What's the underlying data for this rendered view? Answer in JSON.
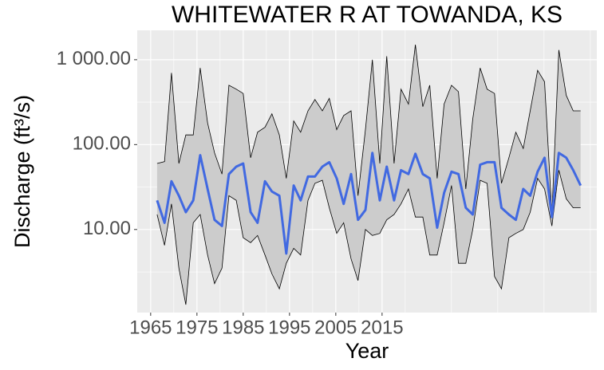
{
  "chart_data": {
    "type": "ribbon-line",
    "title": "WHITEWATER R AT TOWANDA, KS",
    "x_label": "Year",
    "y_label": "Discharge (ft³/s)",
    "log_y": true,
    "grid": true,
    "x": [
      1966.4,
      1968.0,
      1969.5,
      1971.1,
      1972.6,
      1974.2,
      1975.7,
      1977.3,
      1978.8,
      1980.4,
      1981.9,
      1983.5,
      1985.0,
      1986.6,
      1988.1,
      1989.7,
      1991.2,
      1992.8,
      1994.3,
      1995.9,
      1997.4,
      1999.0,
      2000.5,
      2002.1,
      2003.6,
      2005.2,
      2006.7,
      2008.3,
      2009.8,
      2011.4,
      2012.9,
      2014.5,
      2016.0,
      2017.6,
      2019.1,
      2020.7,
      2022.2,
      2023.8,
      2025.3,
      2026.9,
      2028.4,
      2030.0,
      2031.5,
      2033.1,
      2034.6,
      2036.2,
      2037.7,
      2039.3,
      2040.8,
      2042.4,
      2043.9,
      2045.5,
      2047.0,
      2048.6,
      2050.1,
      2051.7,
      2053.2,
      2054.8,
      2056.3,
      2057.9
    ],
    "upper": [
      60,
      63,
      700,
      60,
      130,
      130,
      800,
      180,
      80,
      45,
      500,
      450,
      400,
      70,
      140,
      160,
      230,
      130,
      40,
      190,
      140,
      250,
      340,
      250,
      350,
      150,
      220,
      250,
      25,
      150,
      1000,
      60,
      1100,
      60,
      450,
      300,
      1500,
      280,
      500,
      40,
      300,
      500,
      420,
      30,
      200,
      800,
      450,
      400,
      35,
      70,
      140,
      90,
      250,
      750,
      550,
      15,
      1300,
      380,
      250,
      250
    ],
    "median": [
      22,
      12,
      37,
      25,
      16,
      22,
      75,
      30,
      13,
      11,
      45,
      55,
      60,
      16,
      12,
      37,
      28,
      25,
      5.2,
      33,
      22,
      42,
      42,
      55,
      62,
      40,
      20,
      45,
      13,
      17,
      80,
      22,
      55,
      22,
      50,
      45,
      78,
      45,
      40,
      10.5,
      27,
      48,
      45,
      18,
      15,
      58,
      62,
      62,
      18,
      15,
      13,
      30,
      25,
      48,
      70,
      14,
      80,
      70,
      50,
      33
    ],
    "lower": [
      15,
      6.5,
      20,
      3.5,
      1.3,
      12,
      15,
      5,
      2.3,
      3.5,
      25,
      22,
      8,
      7,
      8.5,
      5,
      3,
      2,
      4,
      6,
      5,
      22,
      35,
      38,
      18,
      9,
      12,
      4.5,
      2.5,
      10,
      8.5,
      9,
      13,
      15,
      20,
      30,
      14,
      14,
      5,
      5,
      12,
      33,
      4,
      4,
      10,
      38,
      35,
      2.8,
      2,
      8,
      9,
      10,
      16,
      40,
      30,
      11,
      50,
      23,
      18,
      18
    ],
    "ribbon_fill": "#cccccc",
    "ribbon_stroke": "#000000",
    "line_color": "#4169e1",
    "xlim": [
      1962.1,
      2061.4
    ],
    "xticks": [
      1965,
      1975,
      1985,
      1995,
      2005,
      2015
    ],
    "ylim": [
      1.05,
      2220
    ],
    "yticks": [
      {
        "value": 10,
        "label": "10.00"
      },
      {
        "value": 100,
        "label": "100.00"
      },
      {
        "value": 1000,
        "label": "1 000.00"
      }
    ]
  }
}
